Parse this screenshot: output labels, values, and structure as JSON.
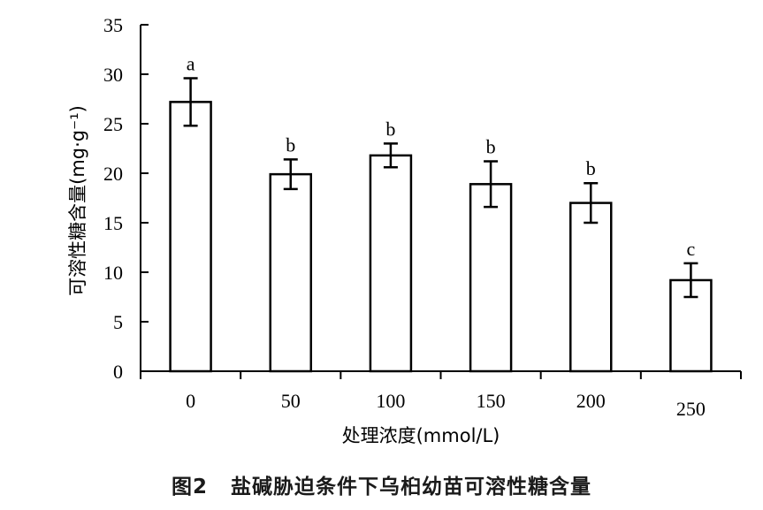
{
  "caption": {
    "figure_number": "图2",
    "text": "盐碱胁迫条件下乌桕幼苗可溶性糖含量"
  },
  "chart_data": {
    "type": "bar",
    "xlabel": "处理浓度(mmol/L)",
    "ylabel": "可溶性糖含量(mg·g⁻¹)",
    "ylim": [
      0,
      35
    ],
    "yticks": [
      0,
      5,
      10,
      15,
      20,
      25,
      30,
      35
    ],
    "categories": [
      "0",
      "50",
      "100",
      "150",
      "200",
      "250"
    ],
    "values": [
      27.2,
      19.9,
      21.8,
      18.9,
      17.0,
      9.2
    ],
    "errors": [
      2.4,
      1.5,
      1.2,
      2.3,
      2.0,
      1.7
    ],
    "significance": [
      "a",
      "b",
      "b",
      "b",
      "b",
      "c"
    ],
    "bar_fill": "#ffffff",
    "bar_stroke": "#000000",
    "grid": false,
    "legend": "none"
  }
}
